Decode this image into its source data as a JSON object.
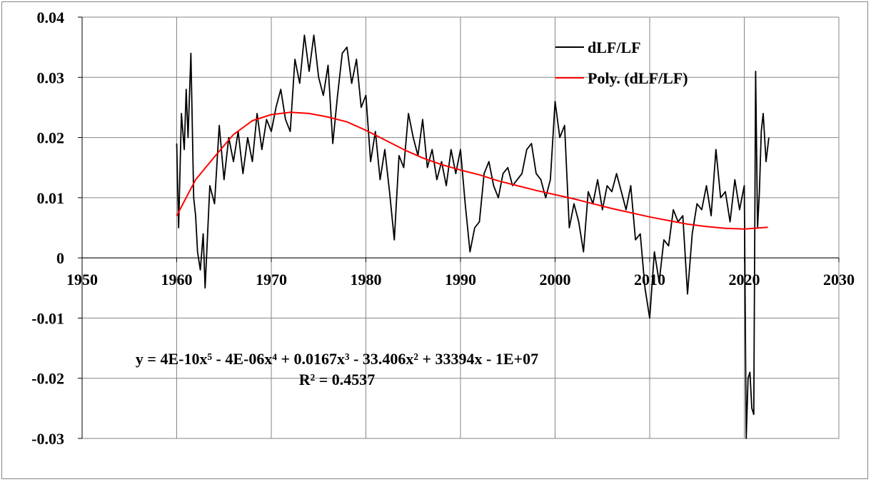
{
  "chart_data": {
    "type": "line",
    "title": "",
    "xlabel": "",
    "ylabel": "",
    "xlim": [
      1950,
      2030
    ],
    "ylim": [
      -0.03,
      0.04
    ],
    "x_ticks": [
      1950,
      1960,
      1970,
      1980,
      1990,
      2000,
      2010,
      2020,
      2030
    ],
    "x_tick_labels": [
      "1950",
      "1960",
      "1970",
      "1980",
      "1990",
      "2000",
      "2010",
      "2020",
      "2030"
    ],
    "y_ticks": [
      -0.03,
      -0.02,
      -0.01,
      0,
      0.01,
      0.02,
      0.03,
      0.04
    ],
    "y_tick_labels": [
      "-0.03",
      "-0.02",
      "-0.01",
      "0",
      "0.01",
      "0.02",
      "0.03",
      "0.04"
    ],
    "grid": "major gridlines on both axes",
    "legend_position": "top-right",
    "series": [
      {
        "name": "dLF/LF",
        "color": "#000000",
        "x": [
          1960.0,
          1960.2,
          1960.5,
          1960.8,
          1961.0,
          1961.2,
          1961.5,
          1961.8,
          1962.0,
          1962.2,
          1962.5,
          1962.8,
          1963.0,
          1963.5,
          1964.0,
          1964.5,
          1965.0,
          1965.5,
          1966.0,
          1966.5,
          1967.0,
          1967.5,
          1968.0,
          1968.5,
          1969.0,
          1969.5,
          1970.0,
          1970.5,
          1971.0,
          1971.5,
          1972.0,
          1972.5,
          1973.0,
          1973.5,
          1974.0,
          1974.5,
          1975.0,
          1975.5,
          1976.0,
          1976.5,
          1977.0,
          1977.5,
          1978.0,
          1978.5,
          1979.0,
          1979.5,
          1980.0,
          1980.5,
          1981.0,
          1981.5,
          1982.0,
          1982.5,
          1983.0,
          1983.5,
          1984.0,
          1984.5,
          1985.0,
          1985.5,
          1986.0,
          1986.5,
          1987.0,
          1987.5,
          1988.0,
          1988.5,
          1989.0,
          1989.5,
          1990.0,
          1990.5,
          1991.0,
          1991.5,
          1992.0,
          1992.5,
          1993.0,
          1993.5,
          1994.0,
          1994.5,
          1995.0,
          1995.5,
          1996.0,
          1996.5,
          1997.0,
          1997.5,
          1998.0,
          1998.5,
          1999.0,
          1999.5,
          2000.0,
          2000.5,
          2001.0,
          2001.5,
          2002.0,
          2002.5,
          2003.0,
          2003.5,
          2004.0,
          2004.5,
          2005.0,
          2005.5,
          2006.0,
          2006.5,
          2007.0,
          2007.5,
          2008.0,
          2008.5,
          2009.0,
          2009.5,
          2010.0,
          2010.5,
          2011.0,
          2011.5,
          2012.0,
          2012.5,
          2013.0,
          2013.5,
          2014.0,
          2014.5,
          2015.0,
          2015.5,
          2016.0,
          2016.5,
          2017.0,
          2017.5,
          2018.0,
          2018.5,
          2019.0,
          2019.5,
          2020.0,
          2020.2,
          2020.4,
          2020.6,
          2020.8,
          2021.0,
          2021.2,
          2021.4,
          2021.6,
          2021.8,
          2022.0,
          2022.3,
          2022.6
        ],
        "y": [
          0.019,
          0.005,
          0.024,
          0.018,
          0.028,
          0.02,
          0.034,
          0.01,
          0.007,
          0.001,
          -0.002,
          0.004,
          -0.005,
          0.012,
          0.009,
          0.022,
          0.013,
          0.02,
          0.016,
          0.021,
          0.014,
          0.02,
          0.016,
          0.024,
          0.018,
          0.023,
          0.021,
          0.025,
          0.028,
          0.023,
          0.021,
          0.033,
          0.029,
          0.037,
          0.031,
          0.037,
          0.03,
          0.027,
          0.032,
          0.019,
          0.027,
          0.034,
          0.035,
          0.029,
          0.033,
          0.025,
          0.027,
          0.016,
          0.021,
          0.013,
          0.018,
          0.011,
          0.003,
          0.017,
          0.015,
          0.024,
          0.02,
          0.017,
          0.023,
          0.015,
          0.018,
          0.013,
          0.016,
          0.012,
          0.018,
          0.014,
          0.018,
          0.009,
          0.001,
          0.005,
          0.006,
          0.014,
          0.016,
          0.012,
          0.01,
          0.014,
          0.015,
          0.012,
          0.013,
          0.014,
          0.018,
          0.019,
          0.014,
          0.013,
          0.01,
          0.013,
          0.026,
          0.02,
          0.022,
          0.005,
          0.009,
          0.006,
          0.001,
          0.011,
          0.009,
          0.013,
          0.008,
          0.012,
          0.011,
          0.014,
          0.011,
          0.008,
          0.012,
          0.003,
          0.004,
          -0.005,
          -0.01,
          0.001,
          -0.004,
          0.003,
          0.002,
          0.008,
          0.006,
          0.007,
          -0.006,
          0.004,
          0.009,
          0.008,
          0.012,
          0.007,
          0.018,
          0.01,
          0.011,
          0.006,
          0.013,
          0.008,
          0.012,
          -0.03,
          -0.02,
          -0.019,
          -0.025,
          -0.026,
          0.031,
          0.005,
          0.011,
          0.021,
          0.024,
          0.016,
          0.02
        ]
      },
      {
        "name": "Poly. (dLF/LF)",
        "color": "#ff0000",
        "x": [
          1960,
          1962,
          1964,
          1966,
          1968,
          1970,
          1972,
          1974,
          1976,
          1978,
          1980,
          1982,
          1984,
          1986,
          1988,
          1990,
          1992,
          1994,
          1996,
          1998,
          2000,
          2002,
          2004,
          2006,
          2008,
          2010,
          2012,
          2014,
          2016,
          2018,
          2020,
          2022.5
        ],
        "y": [
          0.007,
          0.013,
          0.0168,
          0.0205,
          0.0228,
          0.0238,
          0.0242,
          0.024,
          0.0234,
          0.0226,
          0.0212,
          0.0196,
          0.018,
          0.0166,
          0.0155,
          0.0146,
          0.0138,
          0.0128,
          0.012,
          0.0112,
          0.0105,
          0.0098,
          0.009,
          0.0082,
          0.0075,
          0.0068,
          0.0062,
          0.0056,
          0.0052,
          0.0049,
          0.0048,
          0.0051
        ]
      }
    ],
    "trendline_equation": "y = 4E-10x⁵ - 4E-06x⁴ + 0.0167x³ - 33.406x² + 33394x - 1E+07",
    "trendline_r2": "R² = 0.4537"
  },
  "legend": {
    "items": [
      {
        "label": "dLF/LF",
        "color": "#000000"
      },
      {
        "label": "Poly. (dLF/LF)",
        "color": "#ff0000"
      }
    ]
  },
  "colors": {
    "frame": "#868686",
    "grid": "#868686",
    "axis": "#000000",
    "series_main": "#000000",
    "trendline": "#ff0000"
  }
}
